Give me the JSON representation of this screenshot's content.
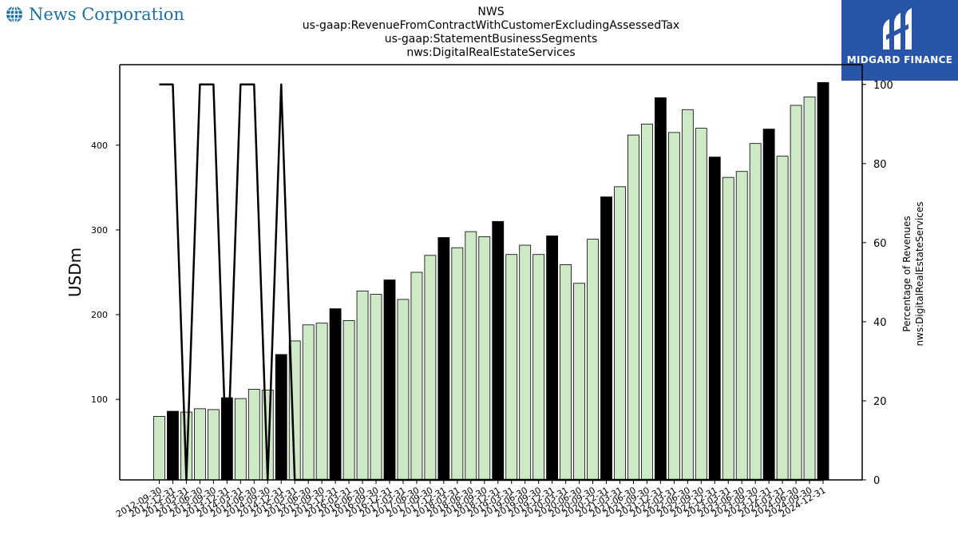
{
  "header": {
    "logo_left_text": "News Corporation",
    "title_lines": [
      "NWS",
      "us-gaap:RevenueFromContractWithCustomerExcludingAssessedTax",
      "us-gaap:StatementBusinessSegments",
      "nws:DigitalRealEstateServices"
    ],
    "logo_right_text": "MIDGARD FINANCE"
  },
  "colors": {
    "bar_light": "#cde9c6",
    "bar_dark": "#000000",
    "line": "#000000",
    "brand_blue": "#2855a8",
    "logo_text_blue": "#1d6fa3"
  },
  "chart_data": {
    "type": "bar",
    "ylabel": "USDm",
    "y2label_lines": [
      "Percentage of Revenues",
      "nws:DigitalRealEstateServices"
    ],
    "ylim": [
      5,
      495
    ],
    "y2lim": [
      0,
      105
    ],
    "yticks": [
      100,
      200,
      300,
      400
    ],
    "y2ticks": [
      0,
      20,
      40,
      60,
      80,
      100
    ],
    "categories": [
      "2012-09-30",
      "2012-12-31",
      "2013-03-31",
      "2013-06-30",
      "2013-09-30",
      "2013-12-31",
      "2014-03-31",
      "2014-06-30",
      "2014-09-30",
      "2014-12-31",
      "2015-03-31",
      "2015-06-30",
      "2015-09-30",
      "2015-12-31",
      "2016-03-31",
      "2016-06-30",
      "2016-09-30",
      "2016-12-31",
      "2017-03-31",
      "2017-06-30",
      "2017-09-30",
      "2017-12-31",
      "2018-03-31",
      "2018-06-30",
      "2018-09-30",
      "2018-12-31",
      "2019-03-31",
      "2019-06-30",
      "2019-09-30",
      "2019-12-31",
      "2020-03-31",
      "2020-06-30",
      "2020-09-30",
      "2020-12-31",
      "2021-03-31",
      "2021-06-30",
      "2021-09-30",
      "2021-12-31",
      "2022-03-31",
      "2022-06-30",
      "2022-09-30",
      "2022-12-31",
      "2023-03-31",
      "2023-06-30",
      "2023-09-30",
      "2023-12-31",
      "2024-03-31",
      "2024-06-30",
      "2024-09-30",
      "2024-12-31"
    ],
    "values": [
      80,
      86,
      85,
      89,
      88,
      102,
      101,
      112,
      111,
      153,
      169,
      188,
      190,
      207,
      193,
      228,
      224,
      241,
      218,
      250,
      270,
      291,
      279,
      298,
      292,
      310,
      271,
      282,
      271,
      293,
      259,
      237,
      289,
      339,
      351,
      412,
      425,
      456,
      415,
      442,
      420,
      386,
      362,
      369,
      402,
      419,
      387,
      447,
      457,
      474
    ],
    "dark_bars": [
      1,
      5,
      9,
      13,
      17,
      21,
      25,
      29,
      33,
      37,
      41,
      45,
      49
    ],
    "series": [
      {
        "axis": "right",
        "values": [
          100,
          100,
          0,
          100,
          100,
          0,
          100,
          100,
          0,
          100,
          0,
          0,
          0,
          0,
          0,
          0,
          0,
          0,
          0,
          0,
          0,
          0,
          0,
          0,
          0,
          0,
          0,
          0,
          0,
          0,
          0,
          0,
          0,
          0,
          0,
          0,
          0,
          0,
          0,
          0,
          0,
          0,
          0,
          0,
          0,
          0,
          0,
          0,
          0,
          0
        ]
      }
    ]
  }
}
